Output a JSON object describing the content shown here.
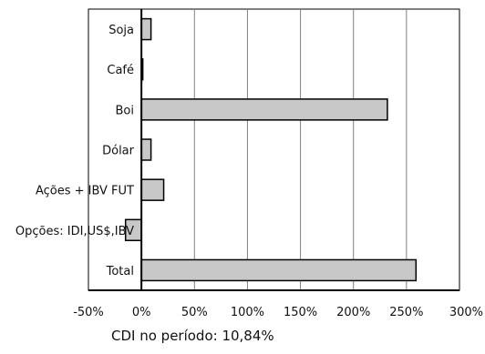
{
  "chart_data": {
    "type": "bar",
    "orientation": "horizontal",
    "categories": [
      "Soja",
      "Café",
      "Boi",
      "Dólar",
      "Ações + IBV FUT",
      "Opções: IDI,US$,IBV",
      "Total"
    ],
    "values": [
      9,
      1,
      232,
      9,
      21,
      -15,
      259
    ],
    "x_ticks": [
      "-50%",
      "0%",
      "50%",
      "100%",
      "150%",
      "200%",
      "250%",
      "300%"
    ],
    "xlim": [
      -50,
      300
    ],
    "grid": true,
    "bar_color": "#c8c8c8",
    "bar_edge_color": "#000000",
    "footnote": "CDI no período: 10,84%"
  }
}
